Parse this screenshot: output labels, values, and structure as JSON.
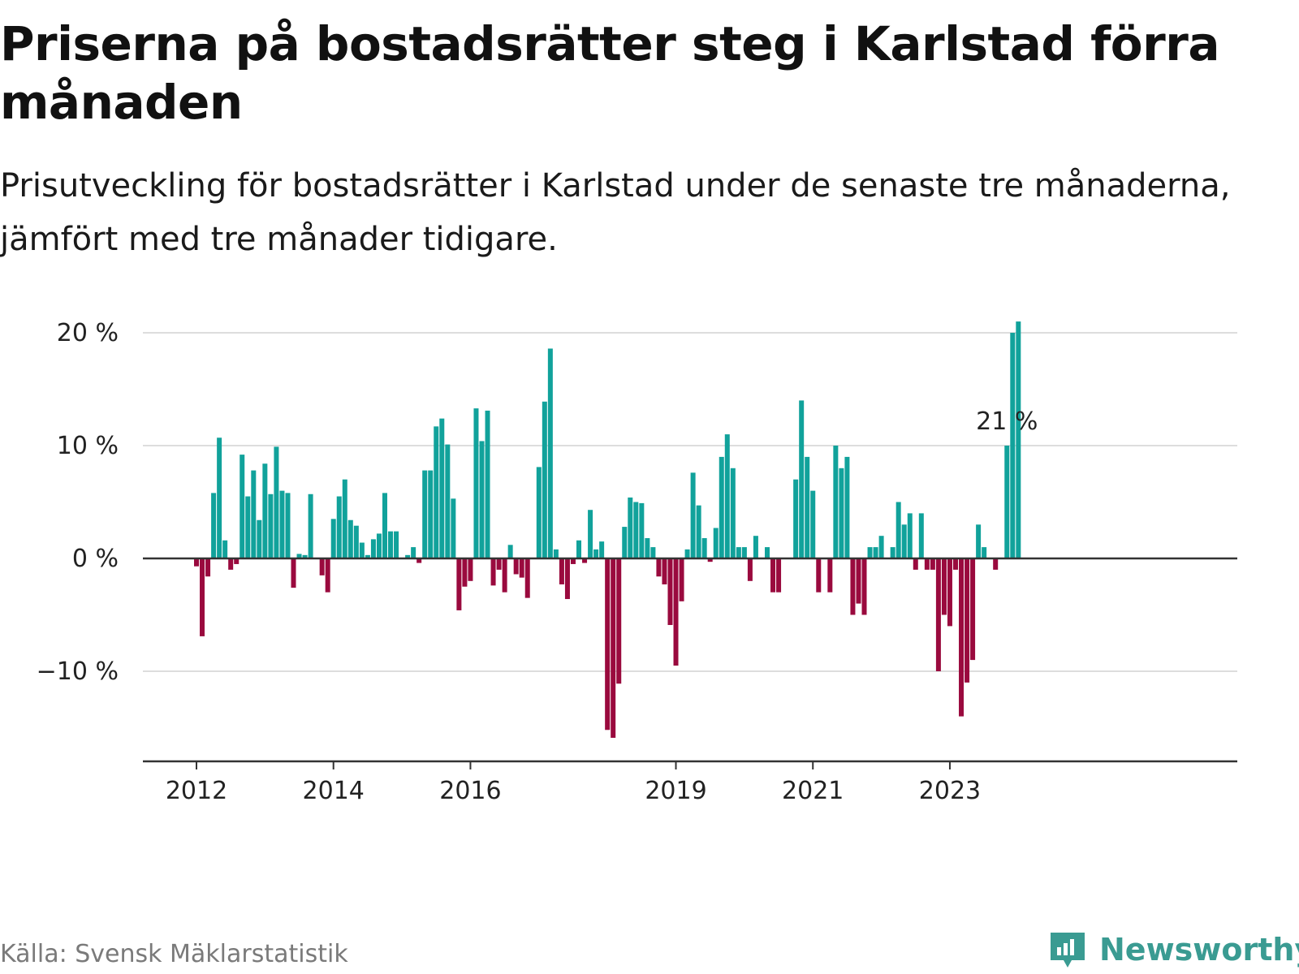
{
  "title": "Priserna på bostadsrätter steg i Karlstad förra månaden",
  "subtitle": "Prisutveckling för bostadsrätter i Karlstad under de senaste tre månaderna, jämfört med tre månader tidigare.",
  "source": "Källa: Svensk Mäklarstatistik",
  "brand": {
    "name": "Newsworthy",
    "icon": "newsworthy-logo-icon",
    "color": "#3a9b92"
  },
  "colors": {
    "positive": "#11a29b",
    "negative": "#9a0a3e",
    "grid": "#dddddd",
    "axis": "#333333"
  },
  "chart_data": {
    "type": "bar",
    "title": "",
    "xlabel": "",
    "ylabel": "",
    "ylim": [
      -18,
      22
    ],
    "y_ticks": [
      20,
      10,
      0,
      -10
    ],
    "y_tick_labels": [
      "20 %",
      "10 %",
      "0 %",
      "−10 %"
    ],
    "x_tick_labels": [
      {
        "label": "2012",
        "index": 0
      },
      {
        "label": "2014",
        "index": 24
      },
      {
        "label": "2016",
        "index": 48
      },
      {
        "label": "2019",
        "index": 84
      },
      {
        "label": "2021",
        "index": 108
      },
      {
        "label": "2023",
        "index": 132
      }
    ],
    "start": "2012-01",
    "frequency": "monthly",
    "annotations": [
      {
        "text": "21 %",
        "index": 142
      }
    ],
    "series": [
      {
        "values": [
          -0.7,
          -6.9,
          -1.6,
          5.8,
          10.7,
          1.6,
          -1.0,
          -0.5,
          9.2,
          5.5,
          7.8,
          3.4,
          8.4,
          5.7,
          9.9,
          6.0,
          5.8,
          -2.6,
          0.4,
          0.3,
          5.7,
          0,
          -1.5,
          -3.0,
          3.5,
          5.5,
          7.0,
          3.4,
          2.9,
          1.4,
          0.3,
          1.7,
          2.2,
          5.8,
          2.4,
          2.4,
          0,
          0.3,
          1.0,
          -0.4,
          7.8,
          7.8,
          11.7,
          12.4,
          10.1,
          5.3,
          -4.6,
          -2.5,
          -2.0,
          13.3,
          10.4,
          13.1,
          -2.4,
          -1.0,
          -3.0,
          1.2,
          -1.4,
          -1.7,
          -3.5,
          0,
          8.1,
          13.9,
          18.6,
          0.8,
          -2.3,
          -3.6,
          -0.5,
          1.6,
          -0.4,
          4.3,
          0.8,
          1.5,
          -15.2,
          -15.9,
          -11.1,
          2.8,
          5.4,
          5.0,
          4.9,
          1.8,
          1.0,
          -1.6,
          -2.3,
          -5.9,
          -9.5,
          -3.8,
          0.8,
          7.6,
          4.7,
          1.8,
          -0.3,
          2.7,
          9.0,
          11.0,
          8.0,
          1.0,
          1.0,
          -2.0,
          2.0,
          0,
          1.0,
          -3.0,
          -3.0,
          0,
          0,
          7.0,
          14.0,
          9.0,
          6.0,
          -3.0,
          0,
          -3.0,
          10.0,
          8.0,
          9.0,
          -5.0,
          -4.0,
          -5.0,
          1.0,
          1.0,
          2.0,
          0,
          1.0,
          5.0,
          3.0,
          4.0,
          -1.0,
          4.0,
          -1.0,
          -1.0,
          -10.0,
          -5.0,
          -6.0,
          -1.0,
          -14.0,
          -11.0,
          -9.0,
          3.0,
          1.0,
          0,
          -1.0,
          0,
          10.0,
          20.0,
          21.0
        ]
      }
    ]
  }
}
